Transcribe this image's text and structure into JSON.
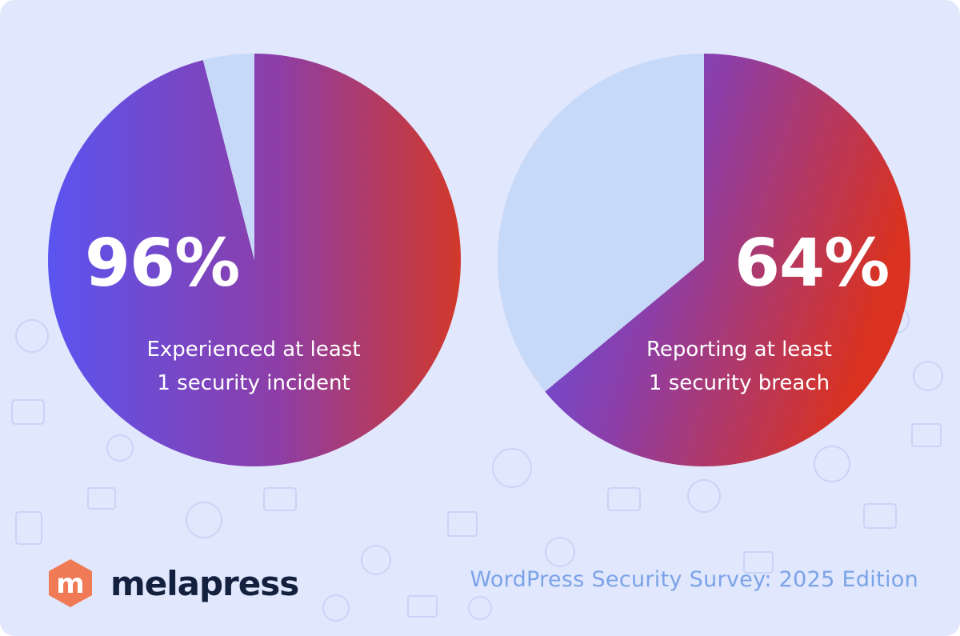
{
  "chart_data": [
    {
      "type": "pie",
      "value": 96,
      "remainder": 4,
      "label": "96%",
      "caption": [
        "Experienced at least",
        "1 security incident"
      ]
    },
    {
      "type": "pie",
      "value": 64,
      "remainder": 36,
      "label": "64%",
      "caption": [
        "Reporting at least",
        "1 security breach"
      ]
    }
  ],
  "colors": {
    "background": "#e1e7fd",
    "remainder": "#c7d9f8",
    "gradient_start": "#5a54f0",
    "gradient_mid": "#8c3ea8",
    "gradient_end": "#d2382a",
    "logo_orange": "#f07a55",
    "brand_text": "#13213f",
    "edition_text": "#7ba3e8"
  },
  "brand": {
    "logo_letter": "m",
    "name": "melapress"
  },
  "footer": {
    "edition": "WordPress Security Survey: 2025 Edition"
  }
}
